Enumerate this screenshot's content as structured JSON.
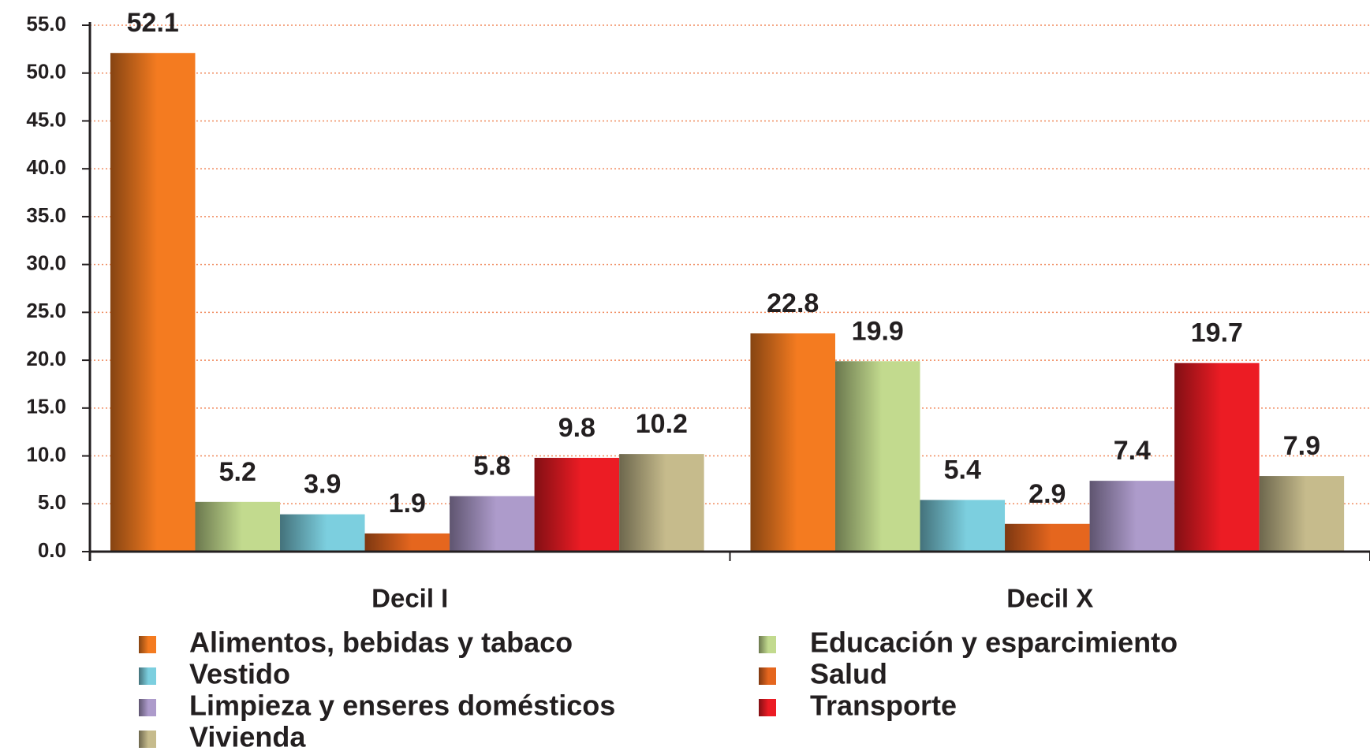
{
  "chart_data": {
    "type": "bar",
    "categories": [
      "Decil I",
      "Decil X"
    ],
    "series": [
      {
        "name": "Alimentos, bebidas y tabaco",
        "color": "#f47b20",
        "values": [
          52.1,
          22.8
        ]
      },
      {
        "name": "Educación y esparcimiento",
        "color": "#c2da8e",
        "values": [
          5.2,
          19.9
        ]
      },
      {
        "name": "Vestido",
        "color": "#7ccfdf",
        "values": [
          3.9,
          5.4
        ]
      },
      {
        "name": "Salud",
        "color": "#e5661e",
        "values": [
          1.9,
          2.9
        ]
      },
      {
        "name": "Limpieza y enseres domésticos",
        "color": "#ad9bcb",
        "values": [
          5.8,
          7.4
        ]
      },
      {
        "name": "Transporte",
        "color": "#ec1c24",
        "values": [
          9.8,
          19.7
        ]
      },
      {
        "name": "Vivienda",
        "color": "#c6bb8c",
        "values": [
          10.2,
          7.9
        ]
      }
    ],
    "ylim": [
      0,
      55
    ],
    "yticks": [
      {
        "value": 0,
        "label": "0.0"
      },
      {
        "value": 5,
        "label": "5.0"
      },
      {
        "value": 10,
        "label": "10.0"
      },
      {
        "value": 15,
        "label": "15.0"
      },
      {
        "value": 20,
        "label": "20.0"
      },
      {
        "value": 25,
        "label": "25.0"
      },
      {
        "value": 30,
        "label": "30.0"
      },
      {
        "value": 35,
        "label": "35.0"
      },
      {
        "value": 40,
        "label": "40.0"
      },
      {
        "value": 45,
        "label": "45.0"
      },
      {
        "value": 50,
        "label": "50.0"
      },
      {
        "value": 55,
        "label": "55.0"
      }
    ],
    "grid": true
  }
}
